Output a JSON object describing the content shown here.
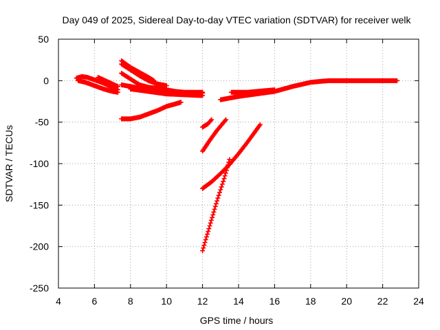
{
  "chart_data": {
    "type": "scatter",
    "title": "Day 049 of 2025, Sidereal Day-to-day VTEC variation (SDTVAR) for receiver welk",
    "xlabel": "GPS time / hours",
    "ylabel": "SDTVAR / TECUs",
    "xlim": [
      4,
      24
    ],
    "ylim": [
      -250,
      50
    ],
    "x_ticks": [
      4,
      6,
      8,
      10,
      12,
      14,
      16,
      18,
      20,
      22,
      24
    ],
    "y_ticks": [
      -250,
      -200,
      -150,
      -100,
      -50,
      0,
      50
    ],
    "grid": true,
    "legend": "none",
    "marker": "+",
    "color": "#ff0000",
    "series": [
      {
        "x": [
          5.0,
          5.3,
          5.6,
          6.0,
          6.5,
          7.0,
          7.3
        ],
        "y": [
          3,
          5,
          4,
          1,
          -3,
          -8,
          -11
        ]
      },
      {
        "x": [
          5.1,
          5.5,
          6.0,
          6.5,
          7.0,
          7.3
        ],
        "y": [
          0,
          -2,
          -6,
          -10,
          -13,
          -14
        ]
      },
      {
        "x": [
          6.2,
          6.6,
          7.0,
          7.3
        ],
        "y": [
          4,
          0,
          -4,
          -7
        ]
      },
      {
        "x": [
          7.5,
          8.0,
          8.5,
          9.0,
          9.3
        ],
        "y": [
          24,
          16,
          10,
          4,
          0
        ]
      },
      {
        "x": [
          7.5,
          8.0,
          8.5,
          9.0,
          9.5,
          10.0
        ],
        "y": [
          20,
          13,
          6,
          0,
          -4,
          -6
        ]
      },
      {
        "x": [
          7.5,
          8.0,
          8.5,
          8.8
        ],
        "y": [
          9,
          2,
          -5,
          -8
        ]
      },
      {
        "x": [
          7.5,
          8.5,
          9.5,
          10.5,
          11.5,
          12.0
        ],
        "y": [
          -5,
          -9,
          -12,
          -14,
          -15,
          -15
        ]
      },
      {
        "x": [
          8.0,
          9.0,
          10.0,
          11.0,
          12.0
        ],
        "y": [
          -10,
          -13,
          -16,
          -17,
          -18
        ]
      },
      {
        "x": [
          8.5,
          9.0,
          9.5,
          9.8
        ],
        "y": [
          -5,
          -8,
          -9,
          -9
        ]
      },
      {
        "x": [
          9.5,
          10.0,
          10.5,
          11.0,
          11.5,
          12.0
        ],
        "y": [
          -8,
          -11,
          -13,
          -14,
          -14,
          -14
        ]
      },
      {
        "x": [
          7.5,
          8.0,
          8.5,
          9.0,
          9.5,
          10.0,
          10.5,
          10.8
        ],
        "y": [
          -46,
          -46,
          -44,
          -40,
          -36,
          -31,
          -28,
          -26
        ]
      },
      {
        "x": [
          13.0,
          13.5,
          14.0,
          15.0,
          16.0,
          17.0,
          18.0,
          19.0,
          20.0,
          21.0,
          22.0,
          22.8
        ],
        "y": [
          -23,
          -21,
          -19,
          -16,
          -13,
          -7,
          -2,
          0,
          0,
          0,
          0,
          0
        ]
      },
      {
        "x": [
          13.6,
          14.0,
          14.5,
          15.0,
          15.5,
          16.0
        ],
        "y": [
          -14,
          -14,
          -14,
          -13,
          -12,
          -11
        ]
      },
      {
        "x": [
          12.0,
          12.3,
          12.5
        ],
        "y": [
          -56,
          -52,
          -47
        ]
      },
      {
        "x": [
          12.0,
          12.4,
          12.8,
          13.3
        ],
        "y": [
          -85,
          -72,
          -60,
          -47
        ]
      },
      {
        "x": [
          12.0,
          12.5,
          13.0,
          13.5,
          14.0,
          14.5,
          15.0,
          15.2
        ],
        "y": [
          -130,
          -122,
          -112,
          -101,
          -88,
          -74,
          -59,
          -53
        ]
      },
      {
        "x": [
          12.0,
          12.4,
          12.8,
          13.2,
          13.5
        ],
        "y": [
          -205,
          -175,
          -145,
          -118,
          -95
        ]
      }
    ]
  }
}
